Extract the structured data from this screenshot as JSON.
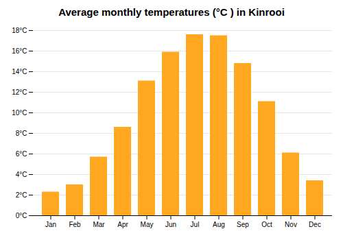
{
  "chart_data": {
    "type": "bar",
    "title": "Average monthly temperatures (°C ) in Kinrooi",
    "categories": [
      "Jan",
      "Feb",
      "Mar",
      "Apr",
      "May",
      "Jun",
      "Jul",
      "Aug",
      "Sep",
      "Oct",
      "Nov",
      "Dec"
    ],
    "values": [
      2.3,
      3.0,
      5.7,
      8.6,
      13.1,
      15.9,
      17.6,
      17.5,
      14.8,
      11.1,
      6.1,
      3.4
    ],
    "color": "#FFA820",
    "ylim": [
      0,
      18
    ],
    "yticks": [
      {
        "value": 0,
        "label": "0°C"
      },
      {
        "value": 2,
        "label": "2°C"
      },
      {
        "value": 4,
        "label": "4°C"
      },
      {
        "value": 6,
        "label": "6°C"
      },
      {
        "value": 8,
        "label": "8°C"
      },
      {
        "value": 10,
        "label": "10°C"
      },
      {
        "value": 12,
        "label": "12°C"
      },
      {
        "value": 14,
        "label": "14°C"
      },
      {
        "value": 16,
        "label": "16°C"
      },
      {
        "value": 18,
        "label": "18°C"
      }
    ],
    "grid": true
  }
}
